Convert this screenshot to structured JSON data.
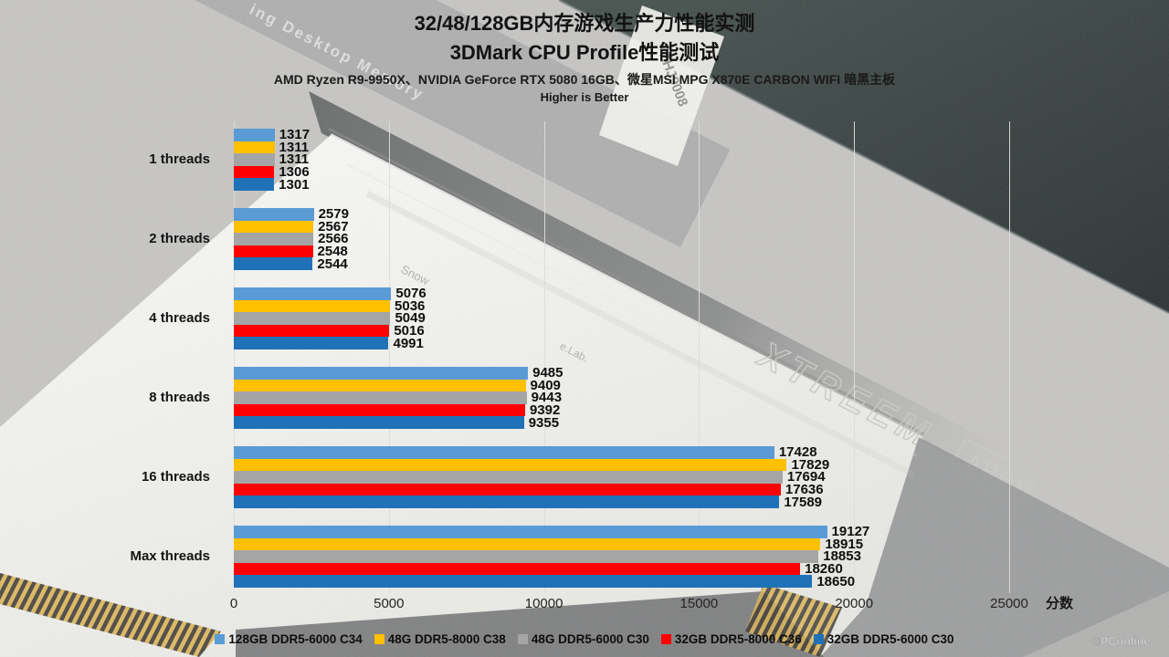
{
  "title": {
    "line1": "32/48/128GB内存游戏生产力性能实测",
    "line2": "3DMark CPU Profile性能测试",
    "line3": "AMD Ryzen R9-9950X、NVIDIA GeForce RTX 5080 16GB、微星MSI MPG X870E CARBON WIFI 暗黑主板",
    "line4": "Higher is Better"
  },
  "chart_data": {
    "type": "bar",
    "orientation": "horizontal",
    "title": "32/48/128GB内存游戏生产力性能实测",
    "subtitle": "3DMark CPU Profile性能测试",
    "note": "Higher is Better",
    "categories": [
      "1 threads",
      "2 threads",
      "4 threads",
      "8 threads",
      "16 threads",
      "Max threads"
    ],
    "series": [
      {
        "name": "128GB DDR5-6000 C34",
        "color": "#5B9BD5",
        "values": [
          1317,
          2579,
          5076,
          9485,
          17428,
          19127
        ]
      },
      {
        "name": "48G DDR5-8000 C38",
        "color": "#FFC000",
        "values": [
          1311,
          2567,
          5036,
          9409,
          17829,
          18915
        ]
      },
      {
        "name": "48G DDR5-6000 C30",
        "color": "#A5A5A5",
        "values": [
          1311,
          2566,
          5049,
          9443,
          17694,
          18853
        ]
      },
      {
        "name": "32GB DDR5-8000 C36",
        "color": "#FF0000",
        "values": [
          1306,
          2548,
          5016,
          9392,
          17636,
          18260
        ]
      },
      {
        "name": "32GB DDR5-6000 C30",
        "color": "#1F72B8",
        "values": [
          1301,
          2544,
          4991,
          9355,
          17589,
          18650
        ]
      }
    ],
    "xlim": [
      0,
      25000
    ],
    "xticks": [
      0,
      5000,
      10000,
      15000,
      20000,
      25000
    ],
    "axis_unit": "分数",
    "grid": true,
    "legend_position": "bottom",
    "data_labels": true
  },
  "background": {
    "package_text": "ing Desktop Memory",
    "stick_brand": "XTREEM",
    "stick_badge": "ARGB",
    "sticker_text": "ZHJ9008",
    "ghost_small_1": "Snow",
    "ghost_small_2": "e.Lab.",
    "watermark": "©PConline"
  }
}
